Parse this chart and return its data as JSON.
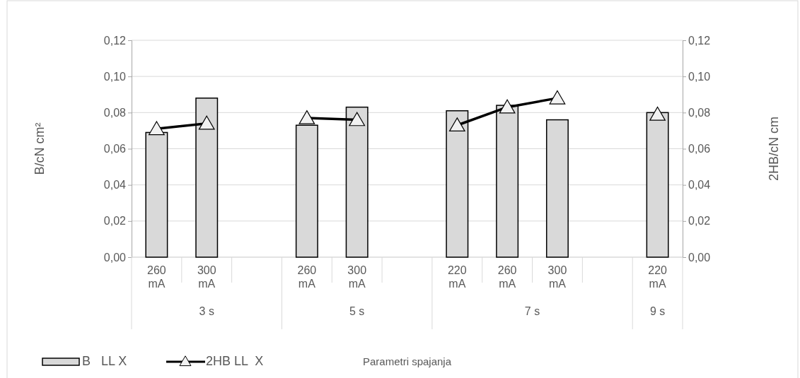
{
  "chart_data": {
    "type": "bar",
    "ylabel": "B/cN cm²",
    "y2label": "2HB/cN cm",
    "categories": [
      "260 mA",
      "300 mA",
      null,
      "260 mA",
      "300 mA",
      null,
      "220 mA",
      "260 mA",
      "300 mA",
      null,
      "220 mA"
    ],
    "annotations": [
      "3 s",
      "5 s",
      "7 s",
      "9 s",
      "Parametri spajanja"
    ],
    "series": [
      {
        "name": "B   LL X",
        "color": "#d9d9d9",
        "values": [
          0.069,
          0.088,
          null,
          0.073,
          0.083,
          null,
          0.081,
          0.084,
          0.076,
          null,
          0.08
        ]
      },
      {
        "name": "2HB LL  X",
        "type": "line",
        "axis": "y2",
        "color": "#000000",
        "marker": "triangle",
        "values": [
          0.071,
          0.074,
          null,
          0.077,
          0.076,
          null,
          0.073,
          0.083,
          0.088,
          null,
          0.079
        ]
      }
    ],
    "ylim": [
      0,
      0.12
    ],
    "yticks": [
      {
        "value": 0,
        "label": "0,00"
      },
      {
        "value": 0.02,
        "label": "0,02"
      },
      {
        "value": 0.04,
        "label": "0,04"
      },
      {
        "value": 0.06,
        "label": "0,06"
      },
      {
        "value": 0.08,
        "label": "0,08"
      },
      {
        "value": 0.1,
        "label": "0,10"
      },
      {
        "value": 0.12,
        "label": "0,12"
      }
    ],
    "y2lim": [
      0,
      0.12
    ],
    "y2ticks": [
      {
        "value": 0,
        "label": "0,00"
      },
      {
        "value": 0.02,
        "label": "0,02"
      },
      {
        "value": 0.04,
        "label": "0,04"
      },
      {
        "value": 0.06,
        "label": "0,06"
      },
      {
        "value": 0.08,
        "label": "0,08"
      },
      {
        "value": 0.1,
        "label": "0,10"
      },
      {
        "value": 0.12,
        "label": "0,12"
      }
    ],
    "grid": "y",
    "legend": "bottom left"
  }
}
